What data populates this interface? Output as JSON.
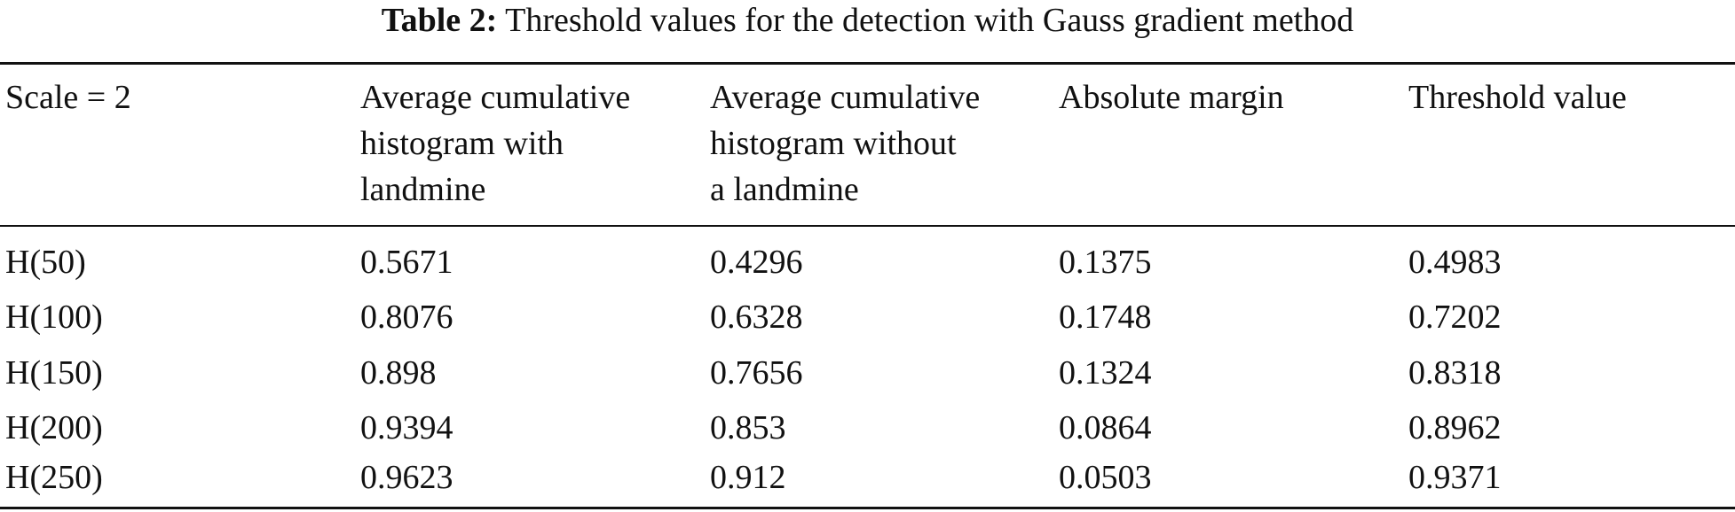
{
  "caption": {
    "label": "Table 2:",
    "text": "Threshold values for the detection with Gauss gradient method"
  },
  "table": {
    "headers": [
      [
        "Scale = 2"
      ],
      [
        "Average cumulative",
        "histogram with",
        "landmine"
      ],
      [
        "Average cumulative",
        "histogram without",
        "a landmine"
      ],
      [
        "Absolute margin"
      ],
      [
        "Threshold value"
      ]
    ],
    "rows": [
      [
        "H(50)",
        "0.5671",
        "0.4296",
        "0.1375",
        "0.4983"
      ],
      [
        "H(100)",
        "0.8076",
        "0.6328",
        "0.1748",
        "0.7202"
      ],
      [
        "H(150)",
        "0.898",
        "0.7656",
        "0.1324",
        "0.8318"
      ],
      [
        "H(200)",
        "0.9394",
        "0.853",
        "0.0864",
        "0.8962"
      ],
      [
        "H(250)",
        "0.9623",
        "0.912",
        "0.0503",
        "0.9371"
      ]
    ]
  }
}
